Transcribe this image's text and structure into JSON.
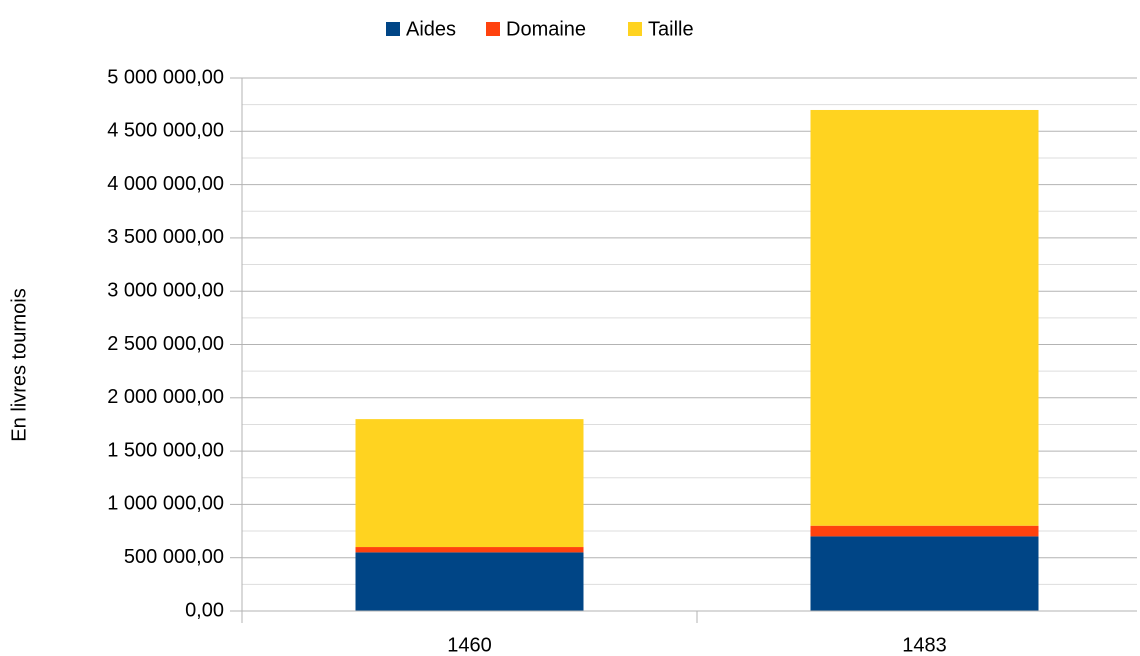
{
  "chart_data": {
    "type": "stacked_bar",
    "y_label": "En livres tournois",
    "categories": [
      "1460",
      "1483"
    ],
    "series": [
      {
        "name": "Aides",
        "color": "#004586",
        "values": [
          550000,
          700000
        ]
      },
      {
        "name": "Domaine",
        "color": "#ff420e",
        "values": [
          50000,
          100000
        ]
      },
      {
        "name": "Taille",
        "color": "#ffd320",
        "values": [
          1200000,
          3900000
        ]
      }
    ],
    "ylim": [
      0,
      5000000
    ],
    "yticks": [
      {
        "value": 0,
        "label": "0,00"
      },
      {
        "value": 500000,
        "label": "500 000,00"
      },
      {
        "value": 1000000,
        "label": "1 000 000,00"
      },
      {
        "value": 1500000,
        "label": "1 500 000,00"
      },
      {
        "value": 2000000,
        "label": "2 000 000,00"
      },
      {
        "value": 2500000,
        "label": "2 500 000,00"
      },
      {
        "value": 3000000,
        "label": "3 000 000,00"
      },
      {
        "value": 3500000,
        "label": "3 500 000,00"
      },
      {
        "value": 4000000,
        "label": "4 000 000,00"
      },
      {
        "value": 4500000,
        "label": "4 500 000,00"
      },
      {
        "value": 5000000,
        "label": "5 000 000,00"
      }
    ],
    "grid": true,
    "legend": "top"
  }
}
